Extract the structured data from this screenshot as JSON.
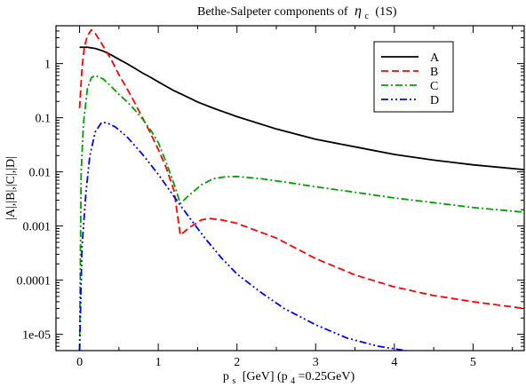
{
  "chart_data": {
    "type": "line",
    "title": "Bethe-Salpeter components of",
    "title_symbol": "η",
    "title_subscript": "c",
    "title_suffix": "(1S)",
    "xlabel_main": "p",
    "xlabel_sub": "s",
    "xlabel_rest": "[GeV] (p",
    "xlabel_sub2": "4",
    "xlabel_end": "=0.25GeV)",
    "ylabel": "|A|,|B|,|C|,|D|",
    "xlim": [
      -0.3,
      5.65
    ],
    "ylim": [
      5e-06,
      5
    ],
    "yscale": "log",
    "grid": false,
    "legend_position": "top-right",
    "x_ticks": [
      0,
      1,
      2,
      3,
      4,
      5
    ],
    "x_tick_labels": [
      "0",
      "1",
      "2",
      "3",
      "4",
      "5"
    ],
    "y_ticks": [
      1e-05,
      0.0001,
      0.001,
      0.01,
      0.1,
      1
    ],
    "y_tick_labels": [
      "1e-05",
      "0.0001",
      "0.001",
      "0.01",
      "0.1",
      "1"
    ],
    "series": [
      {
        "name": "A",
        "color": "#000000",
        "dash": "solid",
        "points": [
          [
            0.0,
            2.0
          ],
          [
            0.1,
            2.0
          ],
          [
            0.2,
            1.9
          ],
          [
            0.3,
            1.7
          ],
          [
            0.4,
            1.45
          ],
          [
            0.5,
            1.2
          ],
          [
            0.6,
            1.0
          ],
          [
            0.7,
            0.82
          ],
          [
            0.8,
            0.67
          ],
          [
            0.9,
            0.56
          ],
          [
            1.0,
            0.46
          ],
          [
            1.1,
            0.38
          ],
          [
            1.2,
            0.315
          ],
          [
            1.3,
            0.27
          ],
          [
            1.4,
            0.23
          ],
          [
            1.5,
            0.195
          ],
          [
            1.7,
            0.15
          ],
          [
            2.0,
            0.105
          ],
          [
            2.5,
            0.062
          ],
          [
            3.0,
            0.04
          ],
          [
            3.5,
            0.029
          ],
          [
            4.0,
            0.021
          ],
          [
            4.5,
            0.0165
          ],
          [
            5.0,
            0.0135
          ],
          [
            5.65,
            0.011
          ]
        ]
      },
      {
        "name": "B",
        "color": "#ff0000",
        "dash": "dashed",
        "points": [
          [
            0.0,
            0.15
          ],
          [
            0.03,
            0.8
          ],
          [
            0.06,
            2.0
          ],
          [
            0.1,
            3.3
          ],
          [
            0.15,
            4.2
          ],
          [
            0.2,
            3.6
          ],
          [
            0.3,
            2.1
          ],
          [
            0.4,
            1.2
          ],
          [
            0.5,
            0.62
          ],
          [
            0.6,
            0.35
          ],
          [
            0.7,
            0.19
          ],
          [
            0.8,
            0.1
          ],
          [
            0.9,
            0.052
          ],
          [
            1.0,
            0.026
          ],
          [
            1.1,
            0.012
          ],
          [
            1.2,
            0.0045
          ],
          [
            1.28,
            0.00068
          ],
          [
            1.4,
            0.00095
          ],
          [
            1.55,
            0.0013
          ],
          [
            1.65,
            0.00138
          ],
          [
            1.8,
            0.0013
          ],
          [
            2.0,
            0.00112
          ],
          [
            2.5,
            0.0006
          ],
          [
            3.0,
            0.00025
          ],
          [
            3.5,
            0.000125
          ],
          [
            4.0,
            7.5e-05
          ],
          [
            4.5,
            5.2e-05
          ],
          [
            5.0,
            4e-05
          ],
          [
            5.65,
            3e-05
          ]
        ]
      },
      {
        "name": "C",
        "color": "#00a000",
        "dash": "dashdot",
        "points": [
          [
            0.0,
            5e-06
          ],
          [
            0.02,
            0.01
          ],
          [
            0.05,
            0.08
          ],
          [
            0.1,
            0.35
          ],
          [
            0.15,
            0.55
          ],
          [
            0.2,
            0.6
          ],
          [
            0.3,
            0.52
          ],
          [
            0.4,
            0.38
          ],
          [
            0.5,
            0.27
          ],
          [
            0.6,
            0.2
          ],
          [
            0.7,
            0.14
          ],
          [
            0.8,
            0.095
          ],
          [
            0.9,
            0.06
          ],
          [
            1.0,
            0.035
          ],
          [
            1.1,
            0.015
          ],
          [
            1.2,
            0.006
          ],
          [
            1.28,
            0.0026
          ],
          [
            1.4,
            0.0038
          ],
          [
            1.55,
            0.0058
          ],
          [
            1.7,
            0.0075
          ],
          [
            1.85,
            0.0081
          ],
          [
            2.0,
            0.0082
          ],
          [
            2.3,
            0.0075
          ],
          [
            2.7,
            0.0062
          ],
          [
            3.0,
            0.0053
          ],
          [
            3.5,
            0.0042
          ],
          [
            4.0,
            0.0033
          ],
          [
            4.5,
            0.0027
          ],
          [
            5.0,
            0.0022
          ],
          [
            5.65,
            0.0018
          ]
        ]
      },
      {
        "name": "D",
        "color": "#0000ff",
        "dash": "dashdotdot",
        "points": [
          [
            0.0,
            5e-06
          ],
          [
            0.03,
            0.0004
          ],
          [
            0.08,
            0.004
          ],
          [
            0.13,
            0.02
          ],
          [
            0.2,
            0.055
          ],
          [
            0.28,
            0.082
          ],
          [
            0.35,
            0.08
          ],
          [
            0.45,
            0.068
          ],
          [
            0.6,
            0.045
          ],
          [
            0.8,
            0.021
          ],
          [
            1.0,
            0.009
          ],
          [
            1.2,
            0.0035
          ],
          [
            1.4,
            0.0014
          ],
          [
            1.6,
            0.00058
          ],
          [
            1.8,
            0.00026
          ],
          [
            2.0,
            0.00013
          ],
          [
            2.3,
            6e-05
          ],
          [
            2.6,
            3e-05
          ],
          [
            3.0,
            1.5e-05
          ],
          [
            3.4,
            8.5e-06
          ],
          [
            3.8,
            6e-06
          ],
          [
            4.15,
            5e-06
          ]
        ]
      }
    ]
  }
}
